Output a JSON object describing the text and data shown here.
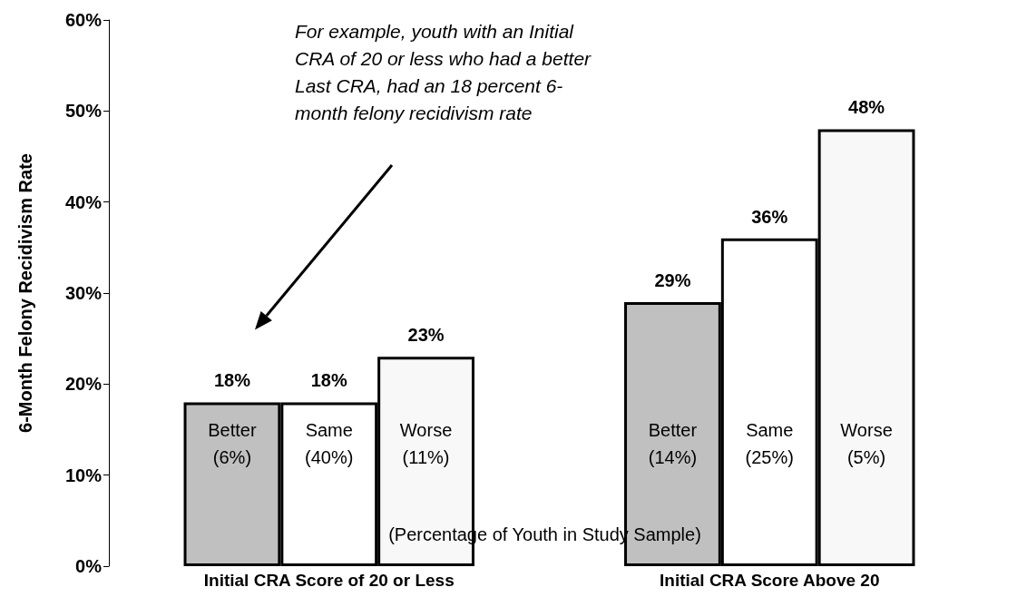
{
  "chart_data": {
    "type": "bar",
    "ylabel": "6-Month Felony Recidivism Rate",
    "categories": [
      "Initial CRA Score of 20 or Less",
      "Initial CRA Score Above 20"
    ],
    "series": [
      {
        "name": "Better",
        "color": "#c0c0c0",
        "values": [
          18,
          29
        ],
        "value_labels": [
          "18%",
          "29%"
        ]
      },
      {
        "name": "Same",
        "color": "#ffffff",
        "values": [
          18,
          36
        ],
        "value_labels": [
          "18%",
          "36%"
        ]
      },
      {
        "name": "Worse",
        "color": "#f8f8f8",
        "values": [
          23,
          48
        ],
        "value_labels": [
          "23%",
          "48%"
        ]
      }
    ],
    "ylim": [
      0,
      60
    ],
    "yticks": [
      {
        "value": 0,
        "label": "0%"
      },
      {
        "value": 10,
        "label": "10%"
      },
      {
        "value": 20,
        "label": "20%"
      },
      {
        "value": 30,
        "label": "30%"
      },
      {
        "value": 40,
        "label": "40%"
      },
      {
        "value": 50,
        "label": "50%"
      },
      {
        "value": 60,
        "label": "60%"
      }
    ],
    "grid": false,
    "legend": false,
    "annotations": [
      "(6%)",
      "(40%)",
      "(11%)",
      "(14%)",
      "(25%)",
      "(5%)",
      "(Percentage of Youth in Study Sample)",
      "For example, youth with an Initial CRA of 20 or less who had a better Last CRA, had an 18 percent 6-month felony recidivism rate"
    ]
  }
}
